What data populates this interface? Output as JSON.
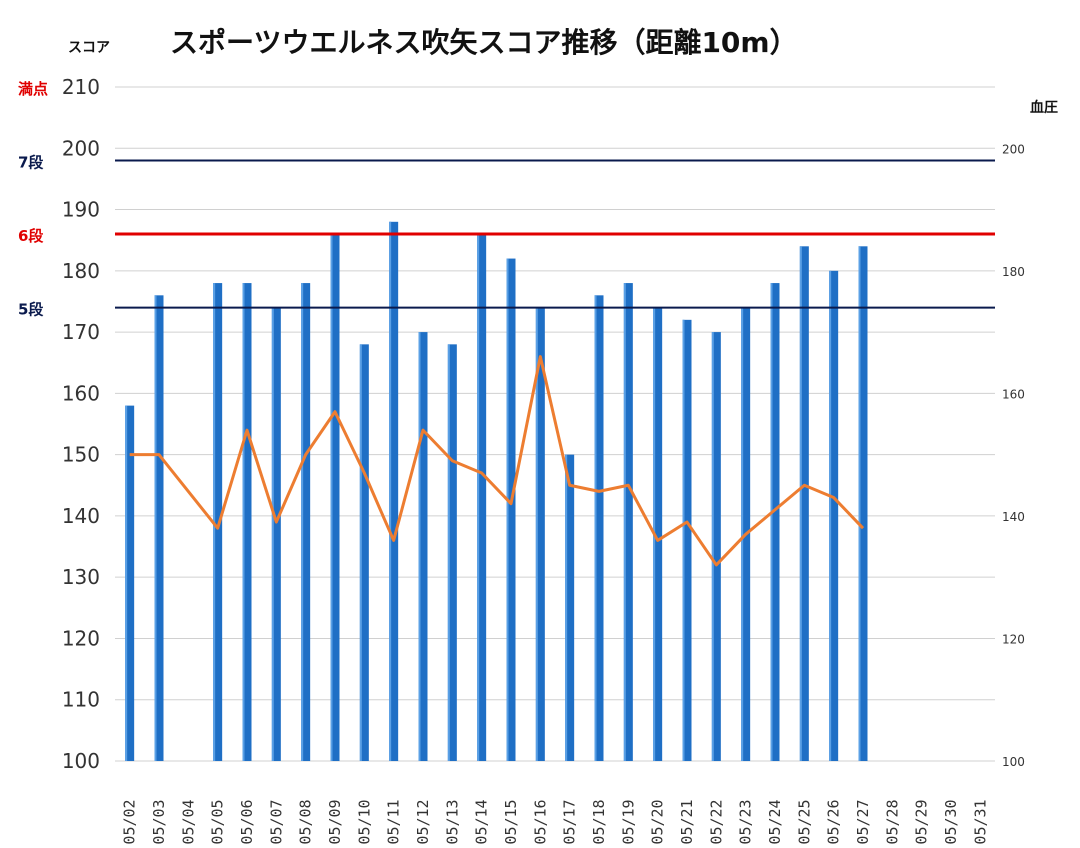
{
  "chart_data": {
    "type": "bar",
    "title": "スポーツウエルネス吹矢スコア推移（距離10m）",
    "y_left_label": "スコア",
    "y_right_label": "血圧",
    "y_left_range": [
      100,
      210
    ],
    "y_left_ticks": [
      100,
      110,
      120,
      130,
      140,
      150,
      160,
      170,
      180,
      190,
      200,
      210
    ],
    "y_right_range": [
      100,
      210
    ],
    "y_right_ticks": [
      100,
      120,
      140,
      160,
      180,
      200
    ],
    "grid": true,
    "categories": [
      "05/02",
      "05/03",
      "05/04",
      "05/05",
      "05/06",
      "05/07",
      "05/08",
      "05/09",
      "05/10",
      "05/11",
      "05/12",
      "05/13",
      "05/14",
      "05/15",
      "05/16",
      "05/17",
      "05/18",
      "05/19",
      "05/20",
      "05/21",
      "05/22",
      "05/23",
      "05/24",
      "05/25",
      "05/26",
      "05/27",
      "05/28",
      "05/29",
      "05/30",
      "05/31"
    ],
    "series": [
      {
        "type": "bar",
        "axis": "left",
        "color": "#1f6fc5",
        "values": [
          158,
          176,
          null,
          178,
          178,
          174,
          178,
          186,
          168,
          188,
          170,
          168,
          186,
          182,
          174,
          150,
          176,
          178,
          174,
          172,
          170,
          174,
          178,
          184,
          180,
          184,
          null,
          null,
          null,
          null
        ]
      },
      {
        "type": "line",
        "axis": "right",
        "color": "#ed7d31",
        "values": [
          150,
          150,
          null,
          138,
          154,
          139,
          150,
          157,
          147,
          136,
          154,
          149,
          147,
          142,
          166,
          145,
          144,
          145,
          136,
          139,
          132,
          137,
          141,
          145,
          143,
          138,
          null,
          null,
          null,
          null
        ]
      }
    ],
    "reference_lines": [
      {
        "label": "満点",
        "value": 210,
        "color": "#e00000",
        "line": false
      },
      {
        "label": "7段",
        "value": 198,
        "color": "#0a1a4d",
        "line": true
      },
      {
        "label": "6段",
        "value": 186,
        "color": "#e00000",
        "line": true
      },
      {
        "label": "5段",
        "value": 174,
        "color": "#0a1a4d",
        "line": true
      }
    ]
  }
}
